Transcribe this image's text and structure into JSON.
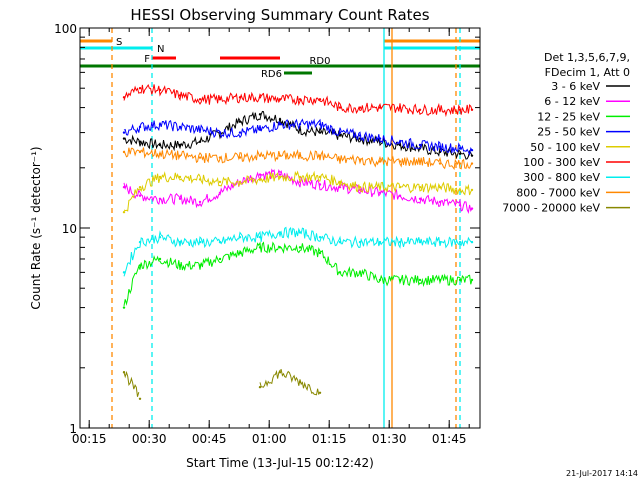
{
  "chart_data": {
    "type": "line",
    "title": "HESSI Observing Summary Count Rates",
    "xlabel": "Start Time (13-Jul-15 00:12:42)",
    "ylabel": "Count Rate (s⁻¹ detector⁻¹)",
    "yscale": "log",
    "ylim": [
      1,
      100
    ],
    "xlim_minutes": [
      0,
      100
    ],
    "x_ticks": [
      "00:15",
      "00:30",
      "00:45",
      "01:00",
      "01:15",
      "01:30",
      "01:45"
    ],
    "y_ticks": [
      "1",
      "10",
      "100"
    ],
    "legend_header": [
      "Det 1,3,5,6,7,9,",
      "FDecim 1, Att 0"
    ],
    "legend_position": "right",
    "footer_date": "21-Jul-2017 14:14",
    "time_minutes": [
      8,
      11,
      15,
      20,
      25,
      30,
      35,
      40,
      45,
      50,
      55,
      60,
      65,
      70,
      75,
      80,
      85,
      90,
      95,
      98
    ],
    "series": [
      {
        "name": "3 - 6 keV",
        "color": "#000000",
        "values": [
          null,
          28,
          27,
          26,
          26,
          27,
          30,
          34,
          37,
          35,
          31,
          30,
          29,
          28,
          27,
          26,
          25,
          24,
          23.5,
          23
        ]
      },
      {
        "name": "6 - 12 keV",
        "color": "#ff00ff",
        "values": [
          null,
          16,
          14.5,
          14,
          14,
          13.5,
          15,
          17,
          18.5,
          18.5,
          17,
          16.5,
          16,
          15.5,
          15,
          14.5,
          14,
          13.5,
          13,
          12.5
        ]
      },
      {
        "name": "12 - 25 keV",
        "color": "#00ee00",
        "values": [
          null,
          4,
          6.5,
          7,
          6.5,
          6.5,
          7,
          7.5,
          8,
          8,
          8,
          7.5,
          6,
          6,
          5.5,
          5.5,
          5.5,
          5.5,
          5.5,
          5.5
        ]
      },
      {
        "name": "25 - 50 keV",
        "color": "#0000ff",
        "values": [
          null,
          30,
          32,
          33,
          32,
          31,
          30,
          30,
          31,
          33,
          33,
          33,
          30,
          29,
          28,
          27,
          26,
          25.5,
          25,
          24.5
        ]
      },
      {
        "name": "50 - 100 keV",
        "color": "#ddcc00",
        "values": [
          null,
          12,
          16,
          18,
          18,
          17.5,
          17,
          17,
          17.5,
          18,
          18,
          18,
          17,
          16,
          16,
          16,
          16,
          16,
          15.5,
          15.5
        ]
      },
      {
        "name": "100 - 300 keV",
        "color": "#ff0000",
        "values": [
          null,
          45,
          50,
          49,
          46,
          44,
          44,
          45,
          45,
          44,
          44,
          44,
          40,
          40,
          40,
          40,
          39,
          39,
          39,
          39
        ]
      },
      {
        "name": "300 - 800 keV",
        "color": "#00eeee",
        "values": [
          null,
          6,
          8.5,
          9,
          8.5,
          8.5,
          8.5,
          9,
          9,
          9.5,
          9.5,
          9,
          8.5,
          8.5,
          8.5,
          8.5,
          8.5,
          8.5,
          8.5,
          8.5
        ]
      },
      {
        "name": "800 - 7000 keV",
        "color": "#ff8800",
        "values": [
          null,
          24,
          24,
          23.5,
          23,
          22.5,
          22.5,
          22.5,
          23,
          23,
          23,
          23,
          22,
          22,
          21.5,
          21.5,
          21.5,
          21,
          21,
          21
        ]
      },
      {
        "name": "7000 - 20000 keV",
        "color": "#888800",
        "values": [
          null,
          1.9,
          1.4,
          null,
          null,
          null,
          null,
          null,
          1.6,
          1.9,
          1.7,
          1.5,
          null,
          null,
          null,
          null,
          null,
          null,
          null,
          null
        ]
      }
    ],
    "flag_bars": [
      {
        "label": "S",
        "color": "#ff8800",
        "ranges": [
          [
            0,
            8
          ],
          [
            76,
            100
          ]
        ]
      },
      {
        "label": "N",
        "color": "#00eeee",
        "ranges": [
          [
            0,
            18
          ],
          [
            76,
            100
          ]
        ]
      },
      {
        "label": "F",
        "color": "#ff0000",
        "ranges": [
          [
            18,
            24
          ],
          [
            35,
            50
          ]
        ]
      },
      {
        "label": "RD0",
        "color": "#007700",
        "ranges": [
          [
            0,
            100
          ]
        ]
      },
      {
        "label": "RD6",
        "color": "#007700",
        "ranges": [
          [
            51,
            58
          ]
        ]
      }
    ],
    "vertical_markers": [
      {
        "color": "#ff8800",
        "style": "dashed",
        "x_minutes": 8
      },
      {
        "color": "#00eeee",
        "style": "dashed",
        "x_minutes": 18
      },
      {
        "color": "#00eeee",
        "style": "solid",
        "x_minutes": 76
      },
      {
        "color": "#ff8800",
        "style": "solid",
        "x_minutes": 78
      },
      {
        "color": "#ff8800",
        "style": "dashed",
        "x_minutes": 94
      },
      {
        "color": "#00eeee",
        "style": "dashed",
        "x_minutes": 95
      }
    ]
  }
}
